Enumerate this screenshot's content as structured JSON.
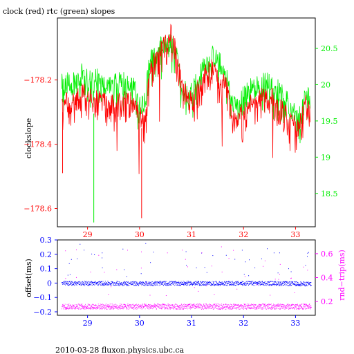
{
  "colors": {
    "frame": "#000000",
    "red": "#ff0000",
    "green": "#00ee00",
    "blue": "#0000ff",
    "magenta": "#ff00ff"
  },
  "footer": "2010-03-28 fluxon.physics.ubc.ca",
  "chart_data": [
    {
      "type": "line",
      "title": "clock (red) rtc (green) slopes",
      "ylabel": "clockslope",
      "x_ticks": [
        29,
        30,
        31,
        32,
        33
      ],
      "xlim": [
        28.42,
        33.38
      ],
      "ylim": [
        -178.657,
        -178.007
      ],
      "y_ticks": [
        -178.2,
        -178.4,
        -178.6
      ],
      "y_tick_labels": [
        "−178.2",
        "−178.4",
        "−178.6"
      ],
      "y2lim": [
        18.04,
        20.92
      ],
      "y2_ticks": [
        18.5,
        19,
        19.5,
        20,
        20.5
      ],
      "series": [
        {
          "name": "clock",
          "color": "#ff0000",
          "axis": "left",
          "x": [
            28.5,
            28.7,
            28.9,
            29.1,
            29.3,
            29.5,
            29.7,
            29.9,
            30.0,
            30.1,
            30.2,
            30.35,
            30.5,
            30.6,
            30.7,
            30.8,
            30.95,
            31.1,
            31.25,
            31.4,
            31.55,
            31.7,
            31.8,
            31.95,
            32.1,
            32.3,
            32.5,
            32.7,
            32.9,
            33.05,
            33.2,
            33.28
          ],
          "y": [
            -178.25,
            -178.27,
            -178.23,
            -178.25,
            -178.26,
            -178.27,
            -178.25,
            -178.27,
            -178.3,
            -178.33,
            -178.16,
            -178.12,
            -178.08,
            -178.05,
            -178.1,
            -178.2,
            -178.26,
            -178.23,
            -178.18,
            -178.15,
            -178.19,
            -178.22,
            -178.32,
            -178.3,
            -178.27,
            -178.25,
            -178.24,
            -178.28,
            -178.32,
            -178.35,
            -178.26,
            -178.29
          ]
        },
        {
          "name": "rtc",
          "color": "#00ee00",
          "axis": "right",
          "x": [
            28.5,
            28.7,
            28.9,
            29.1,
            29.3,
            29.5,
            29.7,
            29.9,
            30.0,
            30.1,
            30.2,
            30.35,
            30.5,
            30.6,
            30.7,
            30.8,
            30.95,
            31.1,
            31.25,
            31.4,
            31.55,
            31.7,
            31.8,
            31.95,
            32.1,
            32.3,
            32.5,
            32.7,
            32.9,
            33.05,
            33.2,
            33.28
          ],
          "y": [
            20.0,
            20.05,
            20.15,
            20.1,
            20.05,
            20.0,
            20.05,
            19.95,
            19.7,
            19.8,
            20.35,
            20.5,
            20.55,
            20.6,
            20.45,
            20.0,
            19.85,
            20.05,
            20.3,
            20.4,
            20.3,
            20.05,
            19.7,
            19.8,
            19.95,
            20.0,
            20.05,
            19.9,
            19.7,
            19.55,
            19.85,
            19.9
          ]
        }
      ]
    },
    {
      "type": "scatter",
      "ylabel": "offset(ms)",
      "y2label": "rnd−trip(ms)",
      "x_ticks": [
        29,
        30,
        31,
        32,
        33
      ],
      "xlim": [
        28.42,
        33.38
      ],
      "ylim": [
        -0.224,
        0.3
      ],
      "y_ticks": [
        0.3,
        0.2,
        0.1,
        0,
        -0.1,
        -0.2
      ],
      "y_tick_labels": [
        "0.3",
        "0.2",
        "0.1",
        "0",
        "−0.1",
        "−0.2"
      ],
      "y2lim": [
        0.085,
        0.715
      ],
      "y2_ticks": [
        0.2,
        0.4,
        0.6
      ],
      "series": [
        {
          "name": "offset",
          "color": "#0000ff",
          "axis": "left",
          "x": [
            28.5,
            29.0,
            29.5,
            30.0,
            30.5,
            31.0,
            31.5,
            32.0,
            32.5,
            33.0,
            33.3
          ],
          "y": [
            0.0,
            0.0,
            0.0,
            -0.002,
            0.0,
            0.0,
            -0.001,
            0.0,
            0.0,
            -0.003,
            -0.005
          ]
        },
        {
          "name": "round-trip",
          "color": "#ff00ff",
          "axis": "right",
          "x": [
            28.5,
            29.0,
            29.5,
            30.0,
            30.5,
            31.0,
            31.5,
            32.0,
            32.5,
            33.0,
            33.3
          ],
          "y": [
            0.16,
            0.16,
            0.16,
            0.16,
            0.16,
            0.16,
            0.16,
            0.16,
            0.16,
            0.16,
            0.16
          ]
        }
      ]
    }
  ]
}
